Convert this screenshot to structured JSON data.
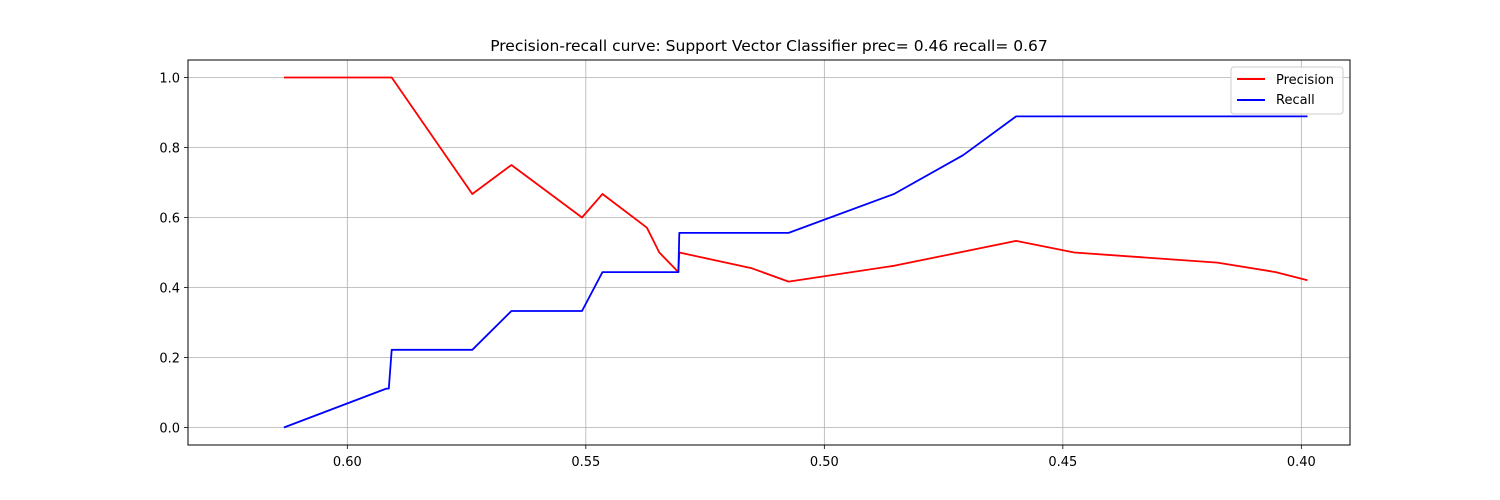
{
  "chart_data": {
    "type": "line",
    "title": "Precision-recall curve: Support Vector Classifier prec= 0.46 recall= 0.67",
    "xlabel": "",
    "ylabel": "",
    "x_reversed": true,
    "xlim": [
      0.6334,
      0.3898
    ],
    "ylim": [
      -0.05,
      1.05
    ],
    "x_ticks": [
      0.6,
      0.55,
      0.5,
      0.45,
      0.4
    ],
    "x_tick_labels": [
      "0.60",
      "0.55",
      "0.50",
      "0.45",
      "0.40"
    ],
    "y_ticks": [
      0.0,
      0.2,
      0.4,
      0.6,
      0.8,
      1.0
    ],
    "y_tick_labels": [
      "0.0",
      "0.2",
      "0.4",
      "0.6",
      "0.8",
      "1.0"
    ],
    "grid": true,
    "legend_position": "top-right",
    "series": [
      {
        "name": "Precision",
        "color": "#ff0000",
        "x": [
          0.6133,
          0.5913,
          0.5907,
          0.5738,
          0.5656,
          0.5508,
          0.5465,
          0.5372,
          0.5346,
          0.5306,
          0.5304,
          0.5152,
          0.5075,
          0.4854,
          0.4598,
          0.4476,
          0.4176,
          0.4054,
          0.3987
        ],
        "y": [
          1.0,
          1.0,
          1.0,
          0.667,
          0.75,
          0.6,
          0.667,
          0.571,
          0.5,
          0.444,
          0.5,
          0.455,
          0.417,
          0.462,
          0.533,
          0.5,
          0.471,
          0.444,
          0.421
        ]
      },
      {
        "name": "Recall",
        "color": "#0000ff",
        "x": [
          0.6133,
          0.5918,
          0.5913,
          0.5907,
          0.5738,
          0.5656,
          0.5508,
          0.5465,
          0.5306,
          0.5304,
          0.5152,
          0.5075,
          0.4854,
          0.4709,
          0.4598,
          0.4476,
          0.4054,
          0.3987
        ],
        "y": [
          0.0,
          0.111,
          0.111,
          0.222,
          0.222,
          0.333,
          0.333,
          0.444,
          0.444,
          0.556,
          0.556,
          0.556,
          0.667,
          0.778,
          0.889,
          0.889,
          0.889,
          0.889
        ]
      }
    ]
  }
}
